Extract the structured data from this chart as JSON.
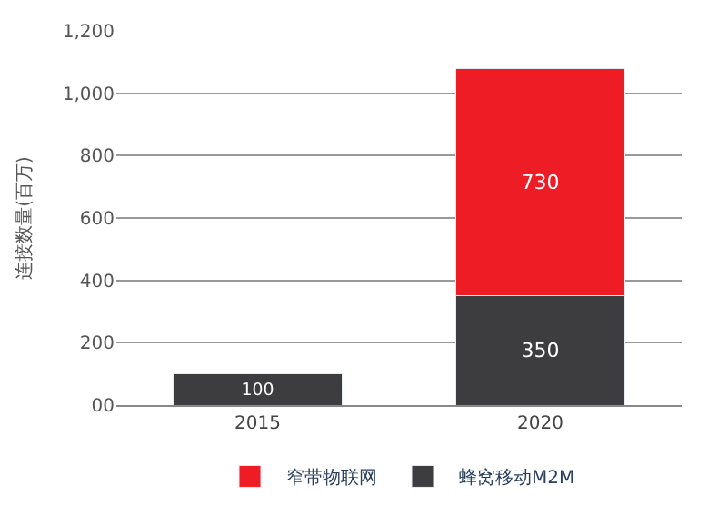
{
  "chart_data": {
    "type": "bar",
    "stacked": true,
    "categories": [
      "2015",
      "2020"
    ],
    "ylabel": "连接数量(百万)",
    "series": [
      {
        "name": "蜂窝移动M2M",
        "color": "#3d3d40",
        "values": [
          100,
          350
        ]
      },
      {
        "name": "窄带物联网",
        "color": "#ee1d25",
        "values": [
          null,
          730
        ]
      }
    ],
    "ylim": [
      0,
      1200
    ],
    "yticks": [
      {
        "value": 0,
        "label": "00"
      },
      200,
      400,
      600,
      800,
      {
        "value": 1000,
        "label": "1,000"
      },
      {
        "value": 1200,
        "label": "1,200"
      }
    ],
    "grid": "y",
    "legend": "bottom",
    "data_labels": true
  }
}
